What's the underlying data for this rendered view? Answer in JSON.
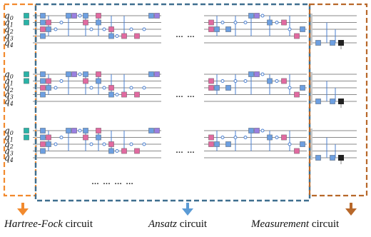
{
  "qubit_labels": [
    "q0",
    "q1",
    "q2",
    "q3",
    "q4"
  ],
  "ellipsis": "… …",
  "ellipsis_long": "… … … …",
  "captions": {
    "hartree_fock": {
      "emph": "Hartree-Fock",
      "rest": " circuit"
    },
    "ansatz": {
      "emph": "Ansatz",
      "rest": " circuit"
    },
    "measurement": {
      "emph": "Measurement",
      "rest": " circuit"
    }
  },
  "colors": {
    "hartree_fock_border": "#f28a2e",
    "ansatz_border": "#3f6f8f",
    "measurement_border": "#b8682a",
    "gate_blue": "#6d9fe0",
    "gate_pink": "#e06aa0",
    "gate_purple": "#9a7fe0",
    "gate_teal": "#2ab3a7",
    "arrow_hf": "#f28a2e",
    "arrow_ansatz": "#5b9bd5",
    "arrow_meas": "#b8682a"
  }
}
